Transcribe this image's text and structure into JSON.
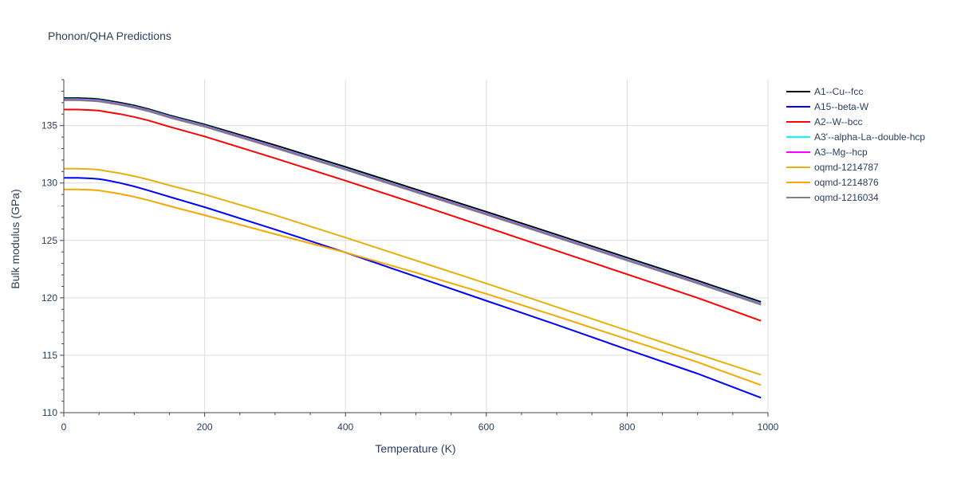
{
  "chart_data": {
    "type": "line",
    "title": "Phonon/QHA Predictions",
    "xlabel": "Temperature (K)",
    "ylabel": "Bulk modulus (GPa)",
    "xlim": [
      0,
      1000
    ],
    "ylim": [
      110,
      139
    ],
    "xticks": [
      0,
      200,
      400,
      600,
      800,
      1000
    ],
    "yticks": [
      110,
      115,
      120,
      125,
      130,
      135
    ],
    "xtick_labels": [
      "0",
      "200",
      "400",
      "600",
      "800",
      "1000"
    ],
    "ytick_labels": [
      "110",
      "115",
      "120",
      "125",
      "130",
      "135"
    ],
    "grid": true,
    "legend_position": "right",
    "x": [
      0,
      20,
      40,
      50,
      60,
      80,
      100,
      120,
      150,
      200,
      300,
      400,
      500,
      600,
      700,
      800,
      900,
      990
    ],
    "series": [
      {
        "name": "A1--Cu--fcc",
        "color": "#000000",
        "values": [
          137.4,
          137.4,
          137.35,
          137.3,
          137.2,
          137.0,
          136.75,
          136.45,
          135.9,
          135.1,
          133.3,
          131.4,
          129.45,
          127.5,
          125.5,
          123.5,
          121.5,
          119.65
        ]
      },
      {
        "name": "A15--beta-W",
        "color": "#0000ff",
        "values": [
          130.45,
          130.45,
          130.4,
          130.35,
          130.25,
          130.0,
          129.7,
          129.35,
          128.8,
          127.9,
          125.95,
          123.95,
          121.85,
          119.75,
          117.65,
          115.5,
          113.4,
          111.3
        ]
      },
      {
        "name": "A2--W--bcc",
        "color": "#ff0000",
        "values": [
          136.4,
          136.4,
          136.35,
          136.3,
          136.2,
          136.0,
          135.75,
          135.45,
          134.9,
          134.05,
          132.15,
          130.2,
          128.2,
          126.15,
          124.1,
          122.05,
          120.0,
          118.0
        ]
      },
      {
        "name": "A3'--alpha-La--double-hcp",
        "color": "#00ffff",
        "values": [
          137.3,
          137.3,
          137.25,
          137.2,
          137.1,
          136.9,
          136.65,
          136.35,
          135.8,
          135.0,
          133.15,
          131.25,
          129.3,
          127.35,
          125.35,
          123.35,
          121.35,
          119.5
        ]
      },
      {
        "name": "A3--Mg--hcp",
        "color": "#ff00ff",
        "values": [
          137.25,
          137.25,
          137.2,
          137.15,
          137.05,
          136.85,
          136.6,
          136.3,
          135.75,
          134.95,
          133.1,
          131.2,
          129.25,
          127.3,
          125.3,
          123.3,
          121.3,
          119.45
        ]
      },
      {
        "name": "oqmd-1214787",
        "color": "#e6b010",
        "values": [
          131.25,
          131.25,
          131.2,
          131.15,
          131.05,
          130.85,
          130.6,
          130.3,
          129.8,
          129.0,
          127.2,
          125.25,
          123.25,
          121.25,
          119.2,
          117.15,
          115.1,
          113.3
        ]
      },
      {
        "name": "oqmd-1214876",
        "color": "#f5a800",
        "values": [
          129.45,
          129.45,
          129.4,
          129.35,
          129.25,
          129.05,
          128.8,
          128.5,
          128.0,
          127.2,
          125.55,
          123.95,
          122.2,
          120.35,
          118.4,
          116.4,
          114.4,
          112.4
        ]
      },
      {
        "name": "oqmd-1216034",
        "color": "#808080",
        "values": [
          137.2,
          137.2,
          137.15,
          137.1,
          137.0,
          136.8,
          136.55,
          136.25,
          135.7,
          134.9,
          133.05,
          131.15,
          129.2,
          127.25,
          125.25,
          123.25,
          121.25,
          119.4
        ]
      }
    ]
  }
}
